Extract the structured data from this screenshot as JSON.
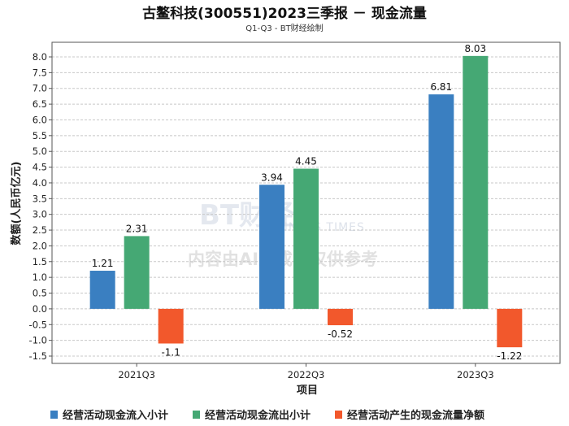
{
  "colors": {
    "series": [
      "#3a7fc1",
      "#45a874",
      "#f2582c"
    ],
    "grid": "#c8c8c8",
    "axis": "#555555"
  },
  "watermark": {
    "logo": "BT财经",
    "brand": "BUSINESS TIMES",
    "notice": "内容由AI生成，仅供参考"
  },
  "chart_data": {
    "type": "bar",
    "title": "古鳌科技(300551)2023三季报 － 现金流量",
    "subtitle": "Q1-Q3 - BT财经绘制",
    "xlabel": "项目",
    "ylabel": "数额(人民币亿元)",
    "categories": [
      "2021Q3",
      "2022Q3",
      "2023Q3"
    ],
    "ylim": [
      -1.5,
      8.0
    ],
    "yticks": [
      "8.0",
      "7.5",
      "7.0",
      "6.5",
      "6.0",
      "5.5",
      "5.0",
      "4.5",
      "4.0",
      "3.5",
      "3.0",
      "2.5",
      "2.0",
      "1.5",
      "1.0",
      "0.5",
      "0.0",
      "-0.5",
      "-1.0",
      "-1.5"
    ],
    "grid": true,
    "legend_position": "bottom",
    "series": [
      {
        "name": "经营活动现金流入小计",
        "values": [
          1.21,
          3.94,
          6.81
        ],
        "labels": [
          "1.21",
          "3.94",
          "6.81"
        ]
      },
      {
        "name": "经营活动现金流出小计",
        "values": [
          2.31,
          4.45,
          8.03
        ],
        "labels": [
          "2.31",
          "4.45",
          "8.03"
        ]
      },
      {
        "name": "经营活动产生的现金流量净额",
        "values": [
          -1.1,
          -0.52,
          -1.22
        ],
        "labels": [
          "-1.1",
          "-0.52",
          "-1.22"
        ]
      }
    ]
  }
}
